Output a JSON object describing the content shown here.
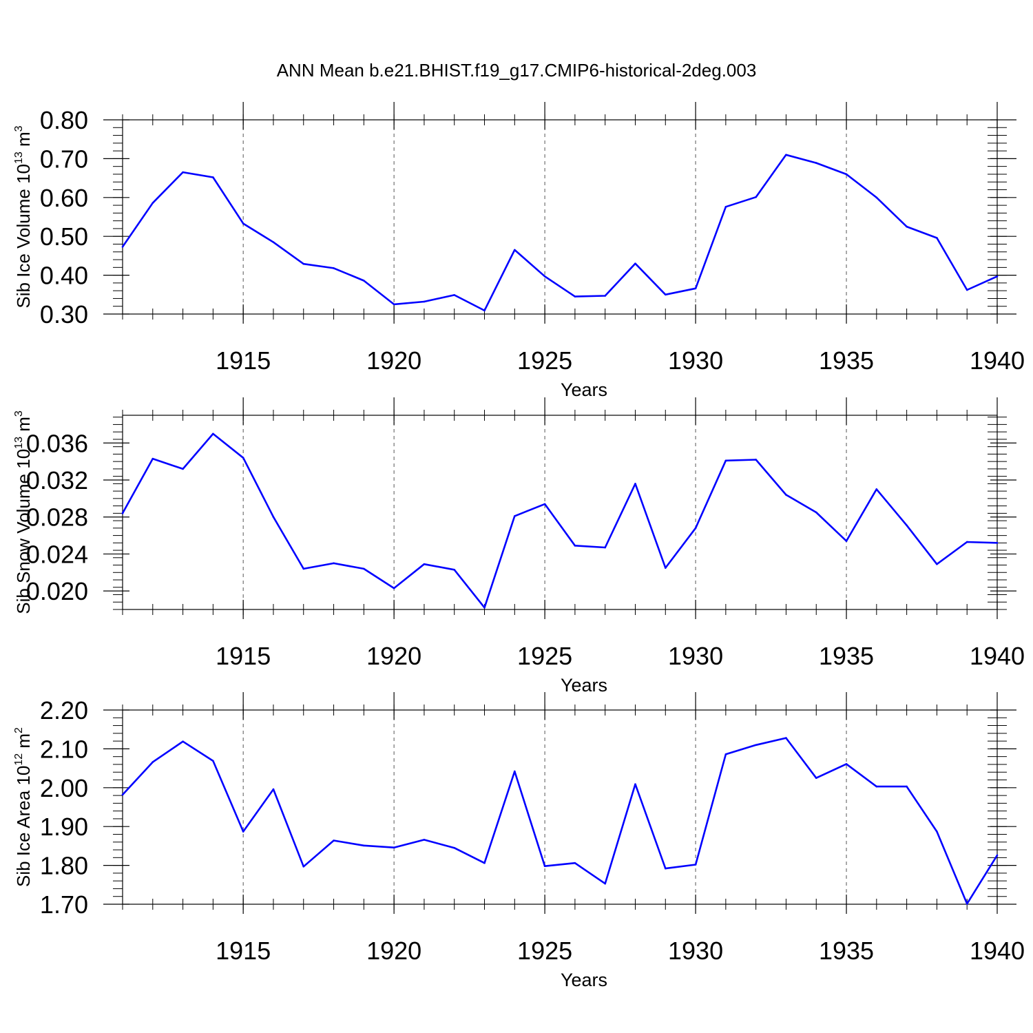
{
  "title": "ANN Mean b.e21.BHIST.f19_g17.CMIP6-historical-2deg.003",
  "colors": {
    "line": "#0000ff",
    "axis": "#000000",
    "grid": "#555555"
  },
  "chart_data": [
    {
      "type": "line",
      "title": "ANN Mean b.e21.BHIST.f19_g17.CMIP6-historical-2deg.003",
      "xlabel": "Years",
      "ylabel": {
        "text": "Sib Ice Volume 10",
        "exp": "13",
        "unit": " m",
        "unit_exp": "3"
      },
      "xlim": [
        1911,
        1940
      ],
      "ylim": [
        0.3,
        0.8
      ],
      "xticks": [
        1915,
        1920,
        1925,
        1930,
        1935,
        1940
      ],
      "xtick_labels": [
        "1915",
        "1920",
        "1925",
        "1930",
        "1935",
        "1940"
      ],
      "yticks": [
        0.3,
        0.4,
        0.5,
        0.6,
        0.7,
        0.8
      ],
      "ytick_labels": [
        "0.30",
        "0.40",
        "0.50",
        "0.60",
        "0.70",
        "0.80"
      ],
      "grid": "vertical dashed at labeled years",
      "x": [
        1911,
        1912,
        1913,
        1914,
        1915,
        1916,
        1917,
        1918,
        1919,
        1920,
        1921,
        1922,
        1923,
        1924,
        1925,
        1926,
        1927,
        1928,
        1929,
        1930,
        1931,
        1932,
        1933,
        1934,
        1935,
        1936,
        1937,
        1938,
        1939,
        1940
      ],
      "values": [
        0.473,
        0.586,
        0.665,
        0.652,
        0.533,
        0.485,
        0.429,
        0.418,
        0.386,
        0.325,
        0.332,
        0.349,
        0.309,
        0.465,
        0.397,
        0.345,
        0.347,
        0.43,
        0.35,
        0.366,
        0.576,
        0.601,
        0.71,
        0.689,
        0.66,
        0.6,
        0.525,
        0.496,
        0.362,
        0.397
      ]
    },
    {
      "type": "line",
      "xlabel": "Years",
      "ylabel": {
        "text": "Sib Snow Volume 10",
        "exp": "13",
        "unit": " m",
        "unit_exp": "3"
      },
      "xlim": [
        1911,
        1940
      ],
      "ylim": [
        0.018,
        0.039
      ],
      "xticks": [
        1915,
        1920,
        1925,
        1930,
        1935,
        1940
      ],
      "xtick_labels": [
        "1915",
        "1920",
        "1925",
        "1930",
        "1935",
        "1940"
      ],
      "yticks": [
        0.02,
        0.024,
        0.028,
        0.032,
        0.036
      ],
      "ytick_labels": [
        "0.020",
        "0.024",
        "0.028",
        "0.032",
        "0.036"
      ],
      "grid": "vertical dashed at labeled years",
      "x": [
        1911,
        1912,
        1913,
        1914,
        1915,
        1916,
        1917,
        1918,
        1919,
        1920,
        1921,
        1922,
        1923,
        1924,
        1925,
        1926,
        1927,
        1928,
        1929,
        1930,
        1931,
        1932,
        1933,
        1934,
        1935,
        1936,
        1937,
        1938,
        1939,
        1940
      ],
      "values": [
        0.0284,
        0.0343,
        0.0332,
        0.037,
        0.0344,
        0.028,
        0.0224,
        0.023,
        0.0224,
        0.0203,
        0.0229,
        0.0223,
        0.0182,
        0.0281,
        0.0294,
        0.0249,
        0.0247,
        0.0316,
        0.0225,
        0.0268,
        0.0341,
        0.0342,
        0.0304,
        0.0285,
        0.0254,
        0.031,
        0.0271,
        0.0229,
        0.0253,
        0.0252
      ]
    },
    {
      "type": "line",
      "xlabel": "Years",
      "ylabel": {
        "text": "Sib Ice Area 10",
        "exp": "12",
        "unit": " m",
        "unit_exp": "2"
      },
      "xlim": [
        1911,
        1940
      ],
      "ylim": [
        1.7,
        2.2
      ],
      "xticks": [
        1915,
        1920,
        1925,
        1930,
        1935,
        1940
      ],
      "xtick_labels": [
        "1915",
        "1920",
        "1925",
        "1930",
        "1935",
        "1940"
      ],
      "yticks": [
        1.7,
        1.8,
        1.9,
        2.0,
        2.1,
        2.2
      ],
      "ytick_labels": [
        "1.70",
        "1.80",
        "1.90",
        "2.00",
        "2.10",
        "2.20"
      ],
      "grid": "vertical dashed at labeled years",
      "x": [
        1911,
        1912,
        1913,
        1914,
        1915,
        1916,
        1917,
        1918,
        1919,
        1920,
        1921,
        1922,
        1923,
        1924,
        1925,
        1926,
        1927,
        1928,
        1929,
        1930,
        1931,
        1932,
        1933,
        1934,
        1935,
        1936,
        1937,
        1938,
        1939,
        1940
      ],
      "values": [
        1.982,
        2.066,
        2.119,
        2.069,
        1.887,
        1.996,
        1.797,
        1.864,
        1.851,
        1.846,
        1.866,
        1.845,
        1.806,
        2.042,
        1.798,
        1.806,
        1.753,
        2.009,
        1.792,
        1.802,
        2.086,
        2.11,
        2.128,
        2.025,
        2.061,
        2.003,
        2.003,
        1.887,
        1.701,
        1.826
      ]
    }
  ]
}
